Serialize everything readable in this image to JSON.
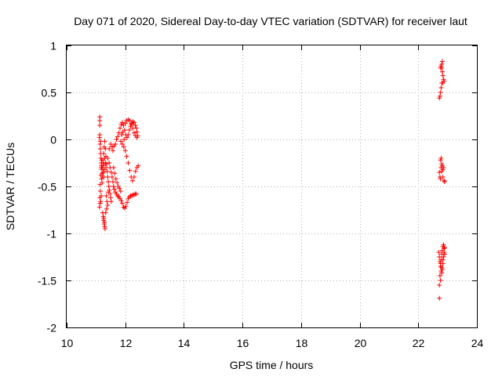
{
  "chart_data": {
    "type": "scatter",
    "title": "Day 071 of 2020, Sidereal Day-to-day VTEC variation (SDTVAR) for receiver laut",
    "xlabel": "GPS time / hours",
    "ylabel": "SDTVAR / TECUs",
    "xlim": [
      10,
      24
    ],
    "ylim": [
      -2,
      1
    ],
    "grid": true,
    "marker": "+",
    "color": "#ff0000",
    "x_ticks": [
      10,
      12,
      14,
      16,
      18,
      20,
      22,
      24
    ],
    "y_ticks": [
      -2,
      -1.5,
      -1,
      -0.5,
      0,
      0.5,
      1
    ],
    "x_tick_labels": [
      "10",
      "12",
      "14",
      "16",
      "18",
      "20",
      "22",
      "24"
    ],
    "y_tick_labels": [
      "-2",
      "-1.5",
      "-1",
      "-0.5",
      "0",
      "0.5",
      "1"
    ],
    "series": [
      {
        "name": "SDTVAR",
        "points": [
          [
            11.13,
            0.24
          ],
          [
            11.13,
            0.2
          ],
          [
            11.13,
            0.15
          ],
          [
            11.12,
            0.02
          ],
          [
            11.14,
            -0.05
          ],
          [
            11.15,
            -0.1
          ],
          [
            11.16,
            -0.15
          ],
          [
            11.17,
            -0.2
          ],
          [
            11.18,
            -0.25
          ],
          [
            11.19,
            -0.28
          ],
          [
            11.2,
            -0.32
          ],
          [
            11.21,
            -0.36
          ],
          [
            11.22,
            -0.4
          ],
          [
            11.14,
            -0.48
          ],
          [
            11.15,
            -0.55
          ],
          [
            11.13,
            -0.62
          ],
          [
            11.14,
            -0.68
          ],
          [
            11.12,
            -0.72
          ],
          [
            11.16,
            -0.66
          ],
          [
            11.18,
            -0.6
          ],
          [
            11.23,
            -0.78
          ],
          [
            11.25,
            -0.82
          ],
          [
            11.26,
            -0.86
          ],
          [
            11.28,
            -0.9
          ],
          [
            11.3,
            -0.93
          ],
          [
            11.31,
            -0.95
          ],
          [
            11.29,
            -0.88
          ],
          [
            11.27,
            -0.84
          ],
          [
            11.22,
            -0.3
          ],
          [
            11.24,
            -0.22
          ],
          [
            11.26,
            -0.15
          ],
          [
            11.28,
            -0.08
          ],
          [
            11.3,
            -0.02
          ],
          [
            11.32,
            -0.1
          ],
          [
            11.34,
            -0.18
          ],
          [
            11.36,
            -0.26
          ],
          [
            11.38,
            -0.34
          ],
          [
            11.4,
            -0.4
          ],
          [
            11.42,
            -0.45
          ],
          [
            11.44,
            -0.5
          ],
          [
            11.46,
            -0.54
          ],
          [
            11.48,
            -0.58
          ],
          [
            11.5,
            -0.62
          ],
          [
            11.52,
            -0.66
          ],
          [
            11.35,
            -0.6
          ],
          [
            11.38,
            -0.66
          ],
          [
            11.4,
            -0.7
          ],
          [
            11.36,
            -0.74
          ],
          [
            11.33,
            -0.78
          ],
          [
            11.42,
            -0.56
          ],
          [
            11.3,
            -0.2
          ],
          [
            11.32,
            -0.25
          ],
          [
            11.34,
            -0.3
          ],
          [
            11.25,
            -0.35
          ],
          [
            11.27,
            -0.4
          ],
          [
            11.4,
            -0.2
          ],
          [
            11.45,
            -0.25
          ],
          [
            11.48,
            -0.3
          ],
          [
            11.52,
            -0.35
          ],
          [
            11.55,
            -0.4
          ],
          [
            11.58,
            -0.45
          ],
          [
            11.6,
            -0.5
          ],
          [
            11.63,
            -0.53
          ],
          [
            11.66,
            -0.56
          ],
          [
            11.7,
            -0.58
          ],
          [
            11.74,
            -0.6
          ],
          [
            11.78,
            -0.61
          ],
          [
            11.82,
            -0.63
          ],
          [
            11.86,
            -0.65
          ],
          [
            11.9,
            -0.68
          ],
          [
            11.94,
            -0.72
          ],
          [
            11.98,
            -0.73
          ],
          [
            12.02,
            -0.71
          ],
          [
            12.06,
            -0.67
          ],
          [
            12.1,
            -0.63
          ],
          [
            12.14,
            -0.61
          ],
          [
            12.18,
            -0.6
          ],
          [
            12.22,
            -0.6
          ],
          [
            12.26,
            -0.59
          ],
          [
            12.3,
            -0.59
          ],
          [
            12.34,
            -0.58
          ],
          [
            12.38,
            -0.58
          ],
          [
            11.45,
            -0.1
          ],
          [
            11.5,
            -0.05
          ],
          [
            11.55,
            -0.08
          ],
          [
            11.58,
            -0.12
          ],
          [
            11.62,
            -0.07
          ],
          [
            11.66,
            -0.05
          ],
          [
            11.7,
            0.0
          ],
          [
            11.74,
            0.03
          ],
          [
            11.78,
            0.07
          ],
          [
            11.82,
            0.12
          ],
          [
            11.86,
            0.16
          ],
          [
            11.9,
            0.18
          ],
          [
            11.94,
            0.15
          ],
          [
            11.98,
            0.1
          ],
          [
            12.02,
            0.05
          ],
          [
            12.06,
            0.02
          ],
          [
            12.1,
            0.05
          ],
          [
            12.14,
            0.1
          ],
          [
            12.18,
            0.14
          ],
          [
            12.22,
            0.17
          ],
          [
            12.26,
            0.19
          ],
          [
            12.3,
            0.18
          ],
          [
            12.34,
            0.15
          ],
          [
            12.38,
            0.12
          ],
          [
            12.4,
            0.08
          ],
          [
            12.42,
            0.04
          ],
          [
            12.0,
            0.17
          ],
          [
            12.05,
            0.2
          ],
          [
            12.1,
            0.21
          ],
          [
            12.15,
            0.2
          ],
          [
            12.2,
            0.16
          ],
          [
            12.25,
            0.12
          ],
          [
            12.3,
            0.07
          ],
          [
            12.35,
            0.04
          ],
          [
            12.4,
            0.02
          ],
          [
            11.85,
            -0.02
          ],
          [
            11.9,
            -0.05
          ],
          [
            11.95,
            -0.08
          ],
          [
            12.0,
            -0.12
          ],
          [
            12.05,
            -0.18
          ],
          [
            12.1,
            -0.25
          ],
          [
            12.15,
            -0.33
          ],
          [
            12.2,
            -0.4
          ],
          [
            12.25,
            -0.44
          ],
          [
            12.3,
            -0.4
          ],
          [
            12.35,
            -0.34
          ],
          [
            12.4,
            -0.3
          ],
          [
            12.44,
            -0.28
          ],
          [
            11.88,
            0.05
          ],
          [
            11.92,
            0.08
          ],
          [
            11.96,
            0.0
          ],
          [
            11.6,
            -0.3
          ],
          [
            11.64,
            -0.36
          ],
          [
            11.68,
            -0.42
          ],
          [
            11.72,
            -0.46
          ],
          [
            11.76,
            -0.5
          ],
          [
            11.8,
            -0.52
          ],
          [
            11.84,
            -0.55
          ],
          [
            11.2,
            -0.22
          ],
          [
            11.18,
            -0.3
          ],
          [
            11.24,
            -0.28
          ],
          [
            11.26,
            -0.26
          ],
          [
            11.28,
            -0.32
          ],
          [
            11.17,
            -0.38
          ],
          [
            11.19,
            -0.42
          ],
          [
            11.21,
            -0.46
          ],
          [
            11.13,
            0.05
          ],
          [
            11.15,
            -0.02
          ],
          [
            22.72,
            0.44
          ],
          [
            22.74,
            0.46
          ],
          [
            22.76,
            0.5
          ],
          [
            22.78,
            0.55
          ],
          [
            22.8,
            0.6
          ],
          [
            22.76,
            0.76
          ],
          [
            22.78,
            0.78
          ],
          [
            22.8,
            0.76
          ],
          [
            22.82,
            0.72
          ],
          [
            22.84,
            0.68
          ],
          [
            22.82,
            0.83
          ],
          [
            22.8,
            0.8
          ],
          [
            22.86,
            0.64
          ],
          [
            22.88,
            0.62
          ],
          [
            22.84,
            0.6
          ],
          [
            22.72,
            -0.35
          ],
          [
            22.74,
            -0.4
          ],
          [
            22.76,
            -0.42
          ],
          [
            22.78,
            -0.3
          ],
          [
            22.8,
            -0.26
          ],
          [
            22.78,
            -0.2
          ],
          [
            22.82,
            -0.28
          ],
          [
            22.84,
            -0.32
          ],
          [
            22.86,
            -0.3
          ],
          [
            22.88,
            -0.44
          ],
          [
            22.9,
            -0.45
          ],
          [
            22.76,
            -0.22
          ],
          [
            22.8,
            -0.34
          ],
          [
            22.84,
            -0.4
          ],
          [
            22.7,
            -1.2
          ],
          [
            22.72,
            -1.25
          ],
          [
            22.74,
            -1.3
          ],
          [
            22.76,
            -1.35
          ],
          [
            22.78,
            -1.4
          ],
          [
            22.8,
            -1.42
          ],
          [
            22.82,
            -1.38
          ],
          [
            22.84,
            -1.32
          ],
          [
            22.86,
            -1.25
          ],
          [
            22.88,
            -1.2
          ],
          [
            22.9,
            -1.15
          ],
          [
            22.74,
            -1.45
          ],
          [
            22.76,
            -1.5
          ],
          [
            22.72,
            -1.55
          ],
          [
            22.78,
            -1.28
          ],
          [
            22.8,
            -1.22
          ],
          [
            22.82,
            -1.18
          ],
          [
            22.84,
            -1.14
          ],
          [
            22.86,
            -1.12
          ],
          [
            22.88,
            -1.16
          ],
          [
            22.9,
            -1.22
          ],
          [
            22.72,
            -1.69
          ],
          [
            22.76,
            -1.32
          ],
          [
            22.8,
            -1.36
          ],
          [
            22.84,
            -1.28
          ]
        ]
      }
    ]
  }
}
